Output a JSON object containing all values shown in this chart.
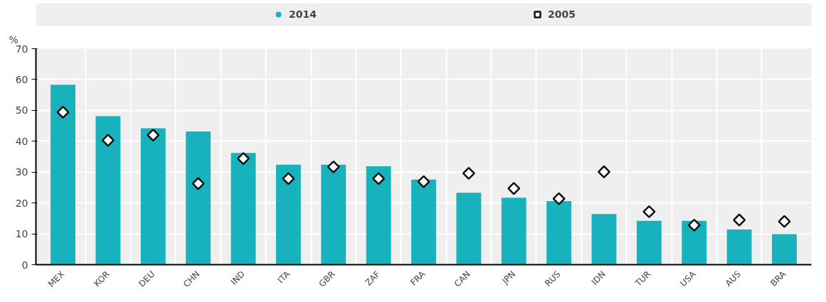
{
  "chart_data": {
    "type": "bar",
    "ylabel": "%",
    "categories": [
      "MEX",
      "KOR",
      "DEU",
      "CHN",
      "IND",
      "ITA",
      "GBR",
      "ZAF",
      "FRA",
      "CAN",
      "JPN",
      "RUS",
      "IDN",
      "TUR",
      "USA",
      "AUS",
      "BRA"
    ],
    "series": [
      {
        "name": "2014",
        "color": "#17b2bc",
        "values": [
          58.3,
          48.1,
          44.2,
          43.2,
          36.2,
          32.4,
          32.4,
          31.9,
          27.6,
          23.3,
          21.7,
          20.6,
          16.4,
          14.2,
          14.2,
          11.4,
          9.9
        ]
      },
      {
        "name": "2005",
        "type": "scatter",
        "marker": "diamond",
        "color": "#ffffff",
        "values": [
          49.4,
          40.3,
          42.0,
          26.3,
          34.4,
          27.9,
          31.7,
          27.9,
          26.9,
          29.6,
          24.7,
          21.4,
          30.1,
          17.2,
          12.8,
          14.5,
          14.0
        ]
      }
    ],
    "ylim": [
      0,
      70
    ],
    "yticks": [
      0,
      10,
      20,
      30,
      40,
      50,
      60,
      70
    ],
    "grid": true,
    "legend": "top"
  }
}
